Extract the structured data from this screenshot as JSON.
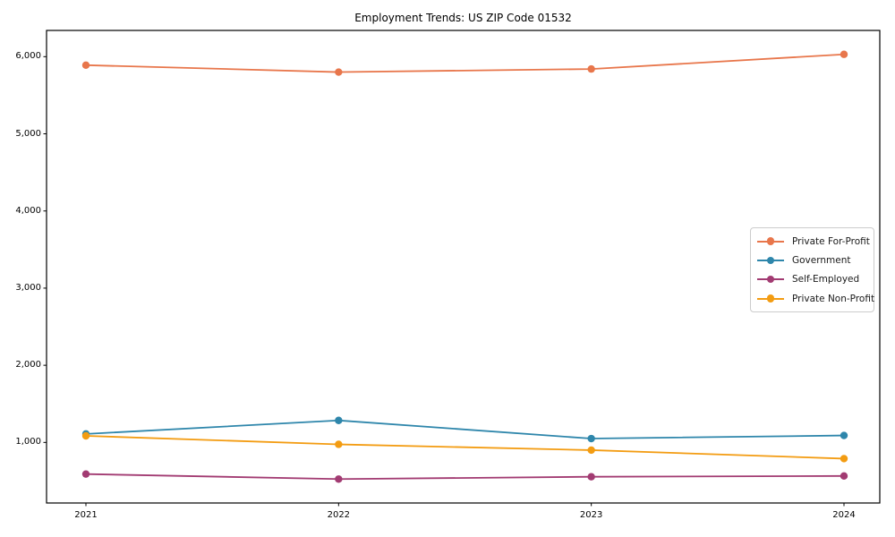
{
  "title": "Employment Trends: US ZIP Code 01532",
  "colors": {
    "background": "#ffffff",
    "axis": "#000000",
    "text": "#000000",
    "legend_border": "#cccccc"
  },
  "chart_data": {
    "type": "line",
    "title": "Employment Trends: US ZIP Code 01532",
    "xlabel": "",
    "ylabel": "",
    "x": [
      2021,
      2022,
      2023,
      2024
    ],
    "x_tick_labels": [
      "2021",
      "2022",
      "2023",
      "2024"
    ],
    "y_ticks": [
      1000,
      2000,
      3000,
      4000,
      5000,
      6000
    ],
    "y_tick_labels": [
      "1,000",
      "2,000",
      "3,000",
      "4,000",
      "5,000",
      "6,000"
    ],
    "ylim": [
      215,
      6340
    ],
    "grid": false,
    "legend_position": "center-right",
    "marker": "circle",
    "series": [
      {
        "name": "Private For-Profit",
        "color": "#E8764B",
        "values": [
          5890,
          5800,
          5840,
          6030
        ]
      },
      {
        "name": "Government",
        "color": "#2E86AB",
        "values": [
          1110,
          1285,
          1050,
          1090
        ]
      },
      {
        "name": "Self-Employed",
        "color": "#A23B72",
        "values": [
          590,
          525,
          555,
          565
        ]
      },
      {
        "name": "Private Non-Profit",
        "color": "#F39C12",
        "values": [
          1085,
          975,
          900,
          790
        ]
      }
    ]
  }
}
